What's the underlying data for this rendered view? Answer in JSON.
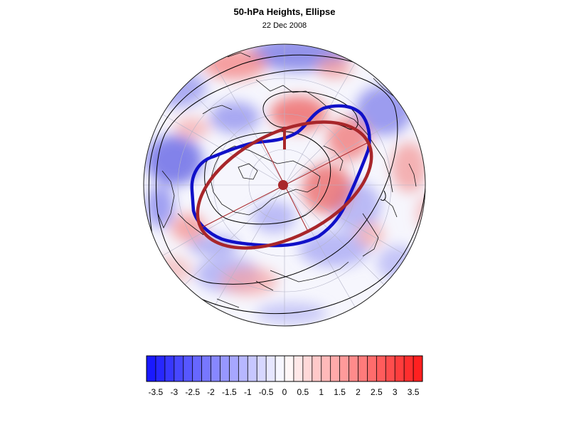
{
  "header": {
    "title": "50-hPa Heights, Ellipse",
    "subtitle": "22 Dec 2008"
  },
  "colors": {
    "ellipse": "#a8262a",
    "vortex_edge": "#1010c8",
    "negative": "#1a1aff",
    "positive": "#ff2020",
    "contour": "#000000"
  },
  "colorbar": {
    "min": -3.75,
    "max": 3.75,
    "step": 0.25,
    "labels": [
      "-3.5",
      "-3",
      "-2.5",
      "-2",
      "-1.5",
      "-1",
      "-0.5",
      "0",
      "0.5",
      "1",
      "1.5",
      "2",
      "2.5",
      "3",
      "3.5"
    ]
  }
}
